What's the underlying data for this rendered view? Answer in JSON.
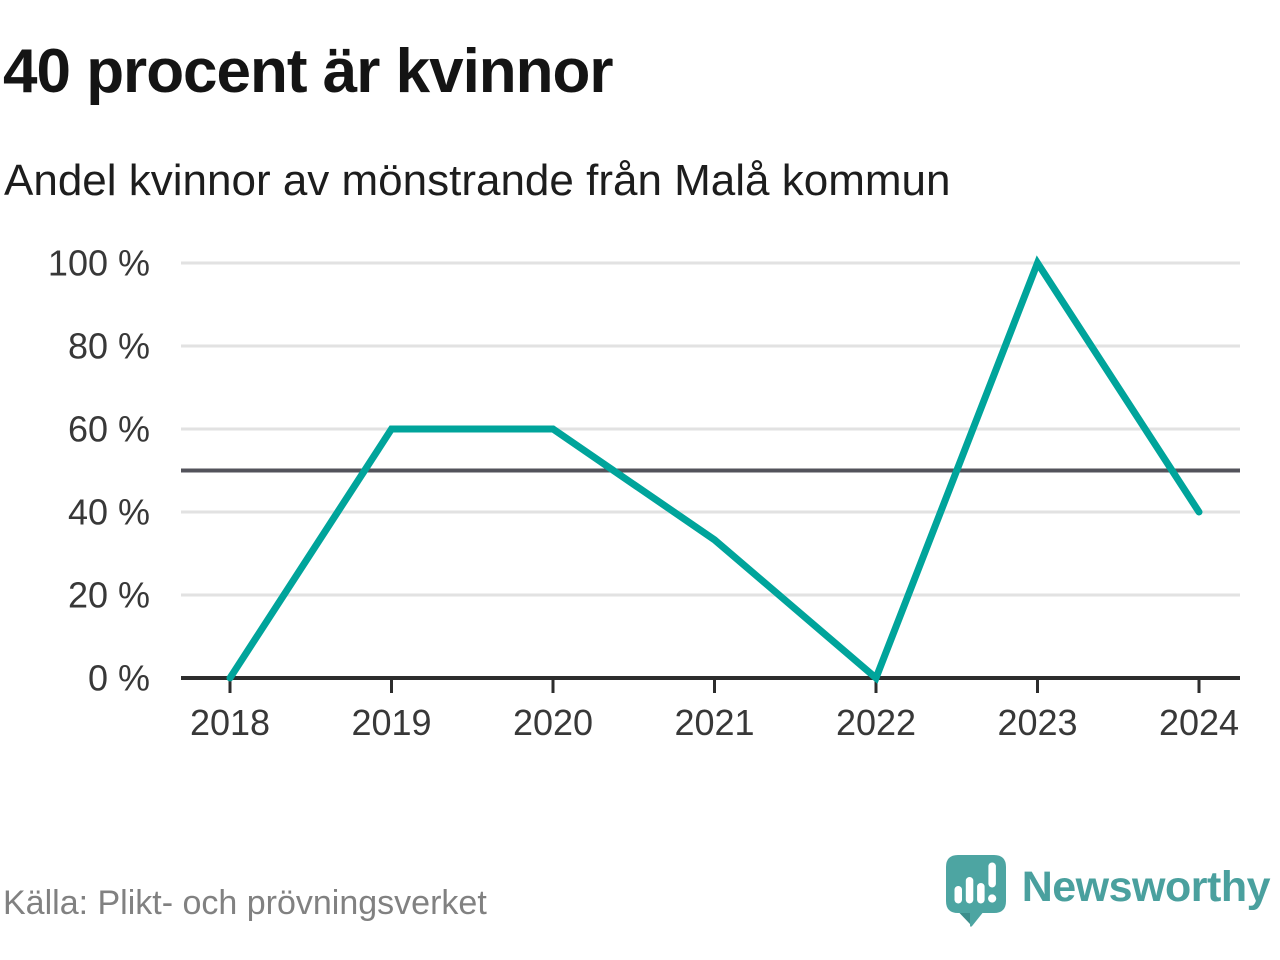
{
  "header": {
    "title": "40 procent är kvinnor",
    "subtitle": "Andel kvinnor av mönstrande från Malå kommun"
  },
  "chart_data": {
    "type": "line",
    "title": "40 procent är kvinnor",
    "subtitle": "Andel kvinnor av mönstrande från Malå kommun",
    "x": [
      "2018",
      "2019",
      "2020",
      "2021",
      "2022",
      "2023",
      "2024"
    ],
    "values": [
      0,
      60,
      60,
      33.3,
      0,
      100,
      40
    ],
    "unit": "%",
    "xlabel": "",
    "ylabel": "",
    "ylim": [
      0,
      100
    ],
    "yticks": [
      0,
      20,
      40,
      60,
      80,
      100
    ],
    "ytick_labels": [
      "0 %",
      "20 %",
      "40 %",
      "60 %",
      "80 %",
      "100 %"
    ],
    "reference_line": 50,
    "grid": true,
    "legend_position": "none",
    "colors": {
      "line": "#00a49b",
      "grid": "#e2e2e2",
      "reference": "#53535b",
      "axis": "#2d2d2d",
      "labels": "#383838"
    }
  },
  "footer": {
    "source": "Källa: Plikt- och prövningsverket",
    "brand": "Newsworthy",
    "brand_colors": {
      "icon": "#4da5a2",
      "icon_shadow": "#3d8e8c",
      "text": "#4aa09e"
    }
  }
}
